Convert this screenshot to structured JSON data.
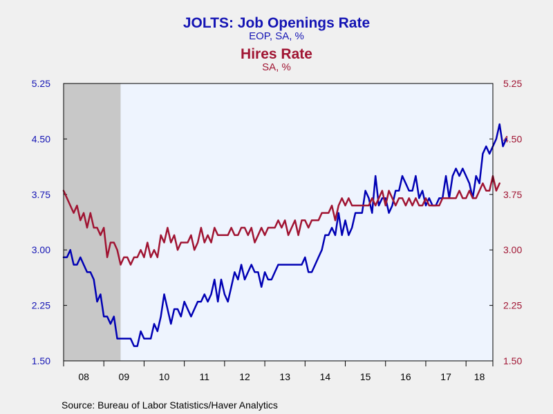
{
  "chart_data": {
    "type": "line",
    "title": "JOLTS: Job Openings Rate",
    "subtitle": "EOP, SA, %",
    "title2": "Hires Rate",
    "subtitle2": "SA, %",
    "source": "Source:  Bureau of Labor Statistics/Haver Analytics",
    "ylim": [
      1.5,
      5.25
    ],
    "y_ticks": [
      "5.25",
      "4.50",
      "3.75",
      "3.00",
      "2.25",
      "1.50"
    ],
    "y_tick_values": [
      5.25,
      4.5,
      3.75,
      3.0,
      2.25,
      1.5
    ],
    "x_ticks": [
      "08",
      "09",
      "10",
      "11",
      "12",
      "13",
      "14",
      "15",
      "16",
      "17",
      "18"
    ],
    "x_start": "2008-01",
    "x_end": "2018-09",
    "recession": {
      "start": "2008-01",
      "end": "2009-06",
      "color": "#c8c8c8"
    },
    "plot_bg": "#eef4fe",
    "series": [
      {
        "name": "JOLTS: Job Openings Rate",
        "color": "#0000b4",
        "axis": "left",
        "values": [
          2.9,
          2.9,
          3.0,
          2.8,
          2.8,
          2.9,
          2.8,
          2.7,
          2.7,
          2.6,
          2.3,
          2.4,
          2.1,
          2.1,
          2.0,
          2.1,
          1.8,
          1.8,
          1.8,
          1.8,
          1.8,
          1.7,
          1.7,
          1.9,
          1.8,
          1.8,
          1.8,
          2.0,
          1.9,
          2.1,
          2.4,
          2.2,
          2.0,
          2.2,
          2.2,
          2.1,
          2.3,
          2.2,
          2.1,
          2.2,
          2.3,
          2.3,
          2.4,
          2.3,
          2.4,
          2.6,
          2.3,
          2.6,
          2.4,
          2.3,
          2.5,
          2.7,
          2.6,
          2.8,
          2.6,
          2.7,
          2.8,
          2.7,
          2.7,
          2.5,
          2.7,
          2.6,
          2.6,
          2.7,
          2.8,
          2.8,
          2.8,
          2.8,
          2.8,
          2.8,
          2.8,
          2.8,
          2.9,
          2.7,
          2.7,
          2.8,
          2.9,
          3.0,
          3.2,
          3.2,
          3.3,
          3.2,
          3.5,
          3.2,
          3.4,
          3.2,
          3.3,
          3.5,
          3.5,
          3.5,
          3.8,
          3.7,
          3.5,
          4.0,
          3.6,
          3.7,
          3.7,
          3.5,
          3.6,
          3.8,
          3.8,
          4.0,
          3.9,
          3.8,
          3.8,
          4.0,
          3.7,
          3.8,
          3.6,
          3.7,
          3.6,
          3.6,
          3.7,
          3.7,
          4.0,
          3.7,
          4.0,
          4.1,
          4.0,
          4.1,
          4.0,
          3.9,
          3.7,
          4.0,
          3.9,
          4.3,
          4.4,
          4.3,
          4.4,
          4.5,
          4.7,
          4.4,
          4.5
        ]
      },
      {
        "name": "Hires Rate",
        "color": "#a01432",
        "axis": "right",
        "values": [
          3.8,
          3.7,
          3.6,
          3.5,
          3.6,
          3.4,
          3.5,
          3.3,
          3.5,
          3.3,
          3.3,
          3.2,
          3.3,
          2.9,
          3.1,
          3.1,
          3.0,
          2.8,
          2.9,
          2.9,
          2.8,
          2.9,
          2.9,
          3.0,
          2.9,
          3.1,
          2.9,
          3.0,
          2.9,
          3.2,
          3.1,
          3.3,
          3.1,
          3.2,
          3.0,
          3.1,
          3.1,
          3.1,
          3.2,
          3.0,
          3.1,
          3.3,
          3.1,
          3.2,
          3.1,
          3.3,
          3.2,
          3.2,
          3.2,
          3.2,
          3.3,
          3.2,
          3.2,
          3.3,
          3.3,
          3.2,
          3.3,
          3.1,
          3.2,
          3.3,
          3.2,
          3.3,
          3.3,
          3.3,
          3.4,
          3.3,
          3.4,
          3.2,
          3.3,
          3.4,
          3.2,
          3.4,
          3.4,
          3.3,
          3.4,
          3.4,
          3.4,
          3.5,
          3.5,
          3.5,
          3.6,
          3.4,
          3.6,
          3.7,
          3.6,
          3.7,
          3.6,
          3.6,
          3.6,
          3.6,
          3.6,
          3.6,
          3.7,
          3.6,
          3.7,
          3.8,
          3.6,
          3.8,
          3.7,
          3.6,
          3.7,
          3.7,
          3.6,
          3.7,
          3.6,
          3.7,
          3.6,
          3.6,
          3.7,
          3.6,
          3.6,
          3.6,
          3.6,
          3.7,
          3.7,
          3.7,
          3.7,
          3.7,
          3.8,
          3.7,
          3.7,
          3.8,
          3.7,
          3.7,
          3.8,
          3.9,
          3.8,
          3.8,
          4.0,
          3.8,
          3.9
        ]
      }
    ]
  }
}
